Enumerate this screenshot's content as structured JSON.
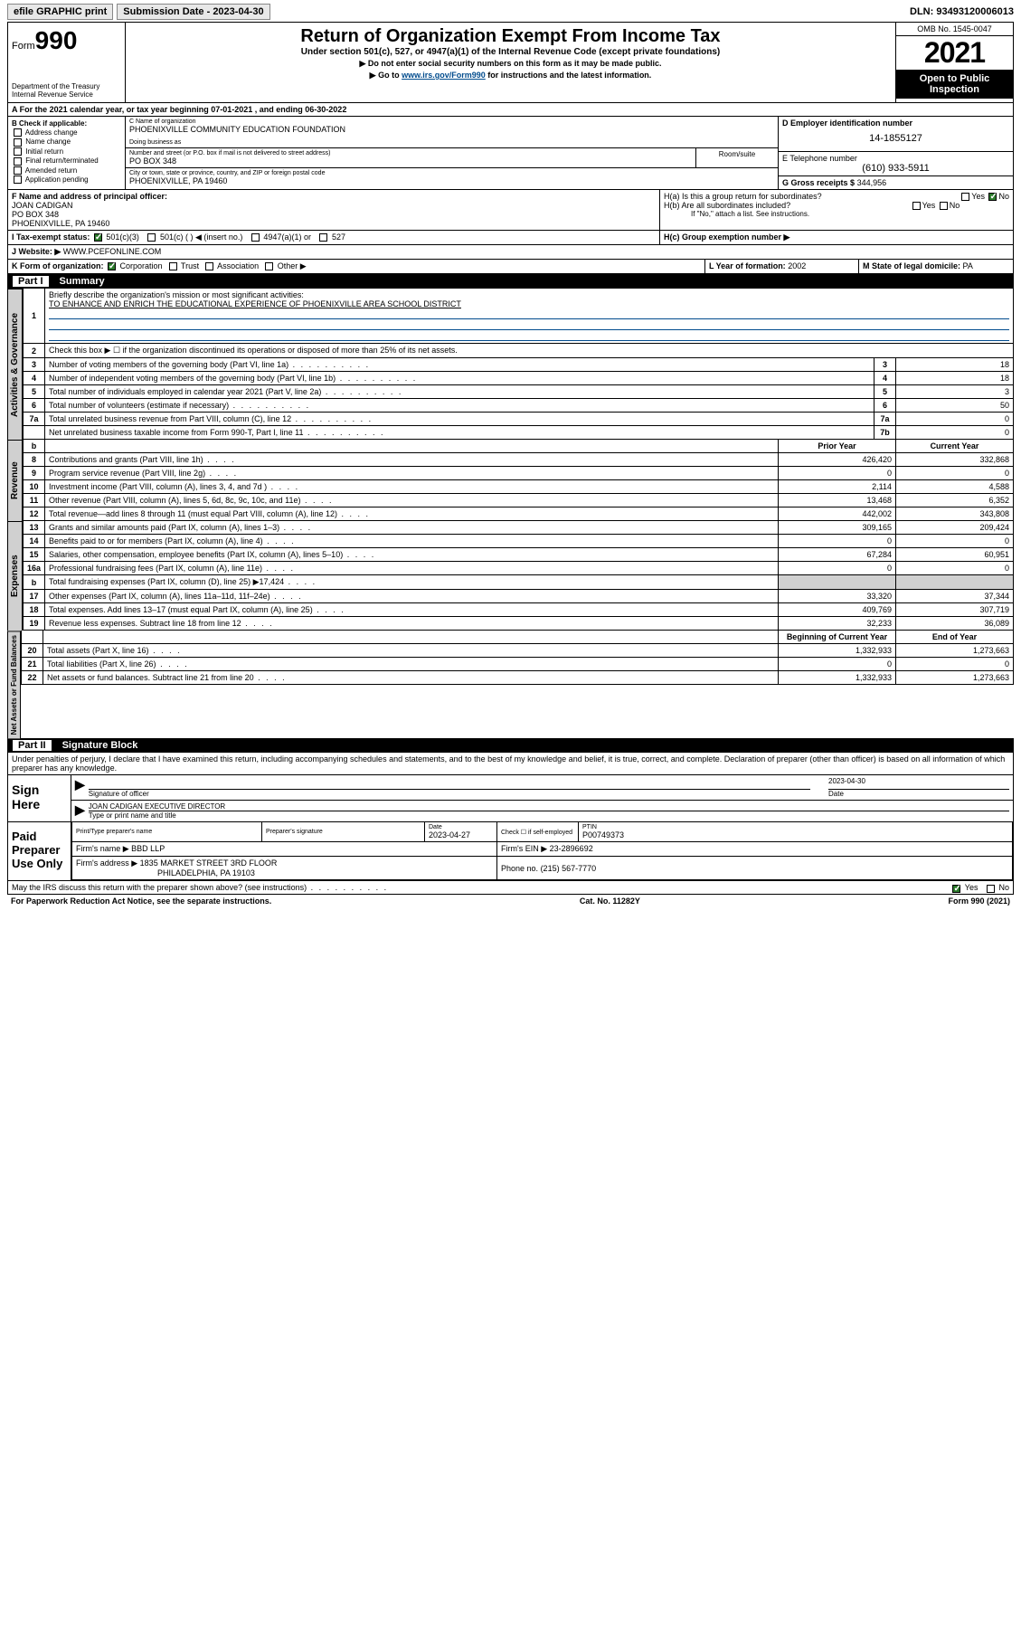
{
  "topbar": {
    "efile": "efile GRAPHIC print",
    "subdate_label": "Submission Date - 2023-04-30",
    "dln": "DLN: 93493120006013"
  },
  "header": {
    "form_label": "Form",
    "form_num": "990",
    "dept": "Department of the Treasury Internal Revenue Service",
    "title": "Return of Organization Exempt From Income Tax",
    "subtitle": "Under section 501(c), 527, or 4947(a)(1) of the Internal Revenue Code (except private foundations)",
    "note1": "▶ Do not enter social security numbers on this form as it may be made public.",
    "note2_pre": "▶ Go to ",
    "note2_link": "www.irs.gov/Form990",
    "note2_post": " for instructions and the latest information.",
    "omb": "OMB No. 1545-0047",
    "year": "2021",
    "otp": "Open to Public Inspection"
  },
  "row_a": "A For the 2021 calendar year, or tax year beginning 07-01-2021   , and ending 06-30-2022",
  "col_b": {
    "title": "B Check if applicable:",
    "items": [
      "Address change",
      "Name change",
      "Initial return",
      "Final return/terminated",
      "Amended return",
      "Application pending"
    ]
  },
  "col_c": {
    "name_lbl": "C Name of organization",
    "name": "PHOENIXVILLE COMMUNITY EDUCATION FOUNDATION",
    "dba_lbl": "Doing business as",
    "addr_lbl": "Number and street (or P.O. box if mail is not delivered to street address)",
    "room_lbl": "Room/suite",
    "addr": "PO BOX 348",
    "city_lbl": "City or town, state or province, country, and ZIP or foreign postal code",
    "city": "PHOENIXVILLE, PA  19460"
  },
  "col_d": {
    "ein_lbl": "D Employer identification number",
    "ein": "14-1855127",
    "tel_lbl": "E Telephone number",
    "tel": "(610) 933-5911",
    "gross_lbl": "G Gross receipts $",
    "gross": "344,956"
  },
  "row_f": {
    "lbl": "F  Name and address of principal officer:",
    "name": "JOAN CADIGAN",
    "addr1": "PO BOX 348",
    "addr2": "PHOENIXVILLE, PA  19460"
  },
  "row_h": {
    "ha": "H(a)  Is this a group return for subordinates?",
    "hb": "H(b)  Are all subordinates included?",
    "hb_note": "If \"No,\" attach a list. See instructions.",
    "hc": "H(c)  Group exemption number ▶",
    "yes": "Yes",
    "no": "No"
  },
  "row_i": {
    "lbl": "I    Tax-exempt status:",
    "opts": [
      "501(c)(3)",
      "501(c) (  ) ◀ (insert no.)",
      "4947(a)(1) or",
      "527"
    ]
  },
  "row_j": {
    "lbl": "J    Website: ▶",
    "val": "WWW.PCEFONLINE.COM"
  },
  "row_k": {
    "lbl": "K Form of organization:",
    "opts": [
      "Corporation",
      "Trust",
      "Association",
      "Other ▶"
    ]
  },
  "row_l": {
    "lbl": "L Year of formation:",
    "val": "2002"
  },
  "row_m": {
    "lbl": "M State of legal domicile:",
    "val": "PA"
  },
  "part1": {
    "hdr": "Part I",
    "title": "Summary",
    "q1": "Briefly describe the organization's mission or most significant activities:",
    "q1_ans": "TO ENHANCE AND ENRICH THE EDUCATIONAL EXPERIENCE OF PHOENIXVILLE AREA SCHOOL DISTRICT",
    "q2": "Check this box ▶ ☐  if the organization discontinued its operations or disposed of more than 25% of its net assets.",
    "rows_gov": [
      {
        "n": "3",
        "d": "Number of voting members of the governing body (Part VI, line 1a)",
        "b": "3",
        "v": "18"
      },
      {
        "n": "4",
        "d": "Number of independent voting members of the governing body (Part VI, line 1b)",
        "b": "4",
        "v": "18"
      },
      {
        "n": "5",
        "d": "Total number of individuals employed in calendar year 2021 (Part V, line 2a)",
        "b": "5",
        "v": "3"
      },
      {
        "n": "6",
        "d": "Total number of volunteers (estimate if necessary)",
        "b": "6",
        "v": "50"
      },
      {
        "n": "7a",
        "d": "Total unrelated business revenue from Part VIII, column (C), line 12",
        "b": "7a",
        "v": "0"
      },
      {
        "n": "",
        "d": "Net unrelated business taxable income from Form 990-T, Part I, line 11",
        "b": "7b",
        "v": "0"
      }
    ],
    "col_prior": "Prior Year",
    "col_curr": "Current Year",
    "rows_rev": [
      {
        "n": "8",
        "d": "Contributions and grants (Part VIII, line 1h)",
        "p": "426,420",
        "c": "332,868"
      },
      {
        "n": "9",
        "d": "Program service revenue (Part VIII, line 2g)",
        "p": "0",
        "c": "0"
      },
      {
        "n": "10",
        "d": "Investment income (Part VIII, column (A), lines 3, 4, and 7d )",
        "p": "2,114",
        "c": "4,588"
      },
      {
        "n": "11",
        "d": "Other revenue (Part VIII, column (A), lines 5, 6d, 8c, 9c, 10c, and 11e)",
        "p": "13,468",
        "c": "6,352"
      },
      {
        "n": "12",
        "d": "Total revenue—add lines 8 through 11 (must equal Part VIII, column (A), line 12)",
        "p": "442,002",
        "c": "343,808"
      }
    ],
    "rows_exp": [
      {
        "n": "13",
        "d": "Grants and similar amounts paid (Part IX, column (A), lines 1–3)",
        "p": "309,165",
        "c": "209,424"
      },
      {
        "n": "14",
        "d": "Benefits paid to or for members (Part IX, column (A), line 4)",
        "p": "0",
        "c": "0"
      },
      {
        "n": "15",
        "d": "Salaries, other compensation, employee benefits (Part IX, column (A), lines 5–10)",
        "p": "67,284",
        "c": "60,951"
      },
      {
        "n": "16a",
        "d": "Professional fundraising fees (Part IX, column (A), line 11e)",
        "p": "0",
        "c": "0"
      },
      {
        "n": "b",
        "d": "Total fundraising expenses (Part IX, column (D), line 25) ▶17,424",
        "p": "",
        "c": "",
        "grey": true
      },
      {
        "n": "17",
        "d": "Other expenses (Part IX, column (A), lines 11a–11d, 11f–24e)",
        "p": "33,320",
        "c": "37,344"
      },
      {
        "n": "18",
        "d": "Total expenses. Add lines 13–17 (must equal Part IX, column (A), line 25)",
        "p": "409,769",
        "c": "307,719"
      },
      {
        "n": "19",
        "d": "Revenue less expenses. Subtract line 18 from line 12",
        "p": "32,233",
        "c": "36,089"
      }
    ],
    "col_beg": "Beginning of Current Year",
    "col_end": "End of Year",
    "rows_net": [
      {
        "n": "20",
        "d": "Total assets (Part X, line 16)",
        "p": "1,332,933",
        "c": "1,273,663"
      },
      {
        "n": "21",
        "d": "Total liabilities (Part X, line 26)",
        "p": "0",
        "c": "0"
      },
      {
        "n": "22",
        "d": "Net assets or fund balances. Subtract line 21 from line 20",
        "p": "1,332,933",
        "c": "1,273,663"
      }
    ],
    "vtab_gov": "Activities & Governance",
    "vtab_rev": "Revenue",
    "vtab_exp": "Expenses",
    "vtab_net": "Net Assets or Fund Balances"
  },
  "part2": {
    "hdr": "Part II",
    "title": "Signature Block",
    "decl": "Under penalties of perjury, I declare that I have examined this return, including accompanying schedules and statements, and to the best of my knowledge and belief, it is true, correct, and complete. Declaration of preparer (other than officer) is based on all information of which preparer has any knowledge."
  },
  "sign": {
    "here": "Sign Here",
    "sig_lbl": "Signature of officer",
    "date_lbl": "Date",
    "date": "2023-04-30",
    "name": "JOAN CADIGAN  EXECUTIVE DIRECTOR",
    "name_lbl": "Type or print name and title"
  },
  "paid": {
    "title": "Paid Preparer Use Only",
    "h1": "Print/Type preparer's name",
    "h2": "Preparer's signature",
    "h3": "Date",
    "date": "2023-04-27",
    "h4": "Check ☐ if self-employed",
    "h5": "PTIN",
    "ptin": "P00749373",
    "firm_lbl": "Firm's name    ▶",
    "firm": "BBD LLP",
    "ein_lbl": "Firm's EIN ▶",
    "ein": "23-2896692",
    "addr_lbl": "Firm's address ▶",
    "addr1": "1835 MARKET STREET 3RD FLOOR",
    "addr2": "PHILADELPHIA, PA  19103",
    "phone_lbl": "Phone no.",
    "phone": "(215) 567-7770",
    "discuss": "May the IRS discuss this return with the preparer shown above? (see instructions)"
  },
  "footer": {
    "left": "For Paperwork Reduction Act Notice, see the separate instructions.",
    "mid": "Cat. No. 11282Y",
    "right": "Form 990 (2021)"
  }
}
